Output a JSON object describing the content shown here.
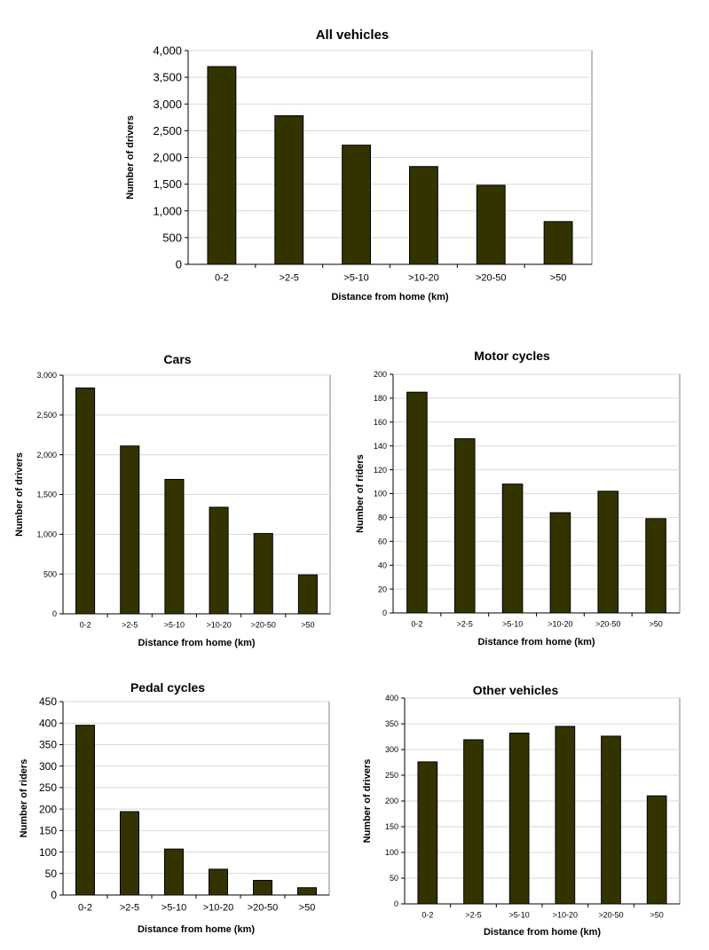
{
  "bar_color": "#333300",
  "chart_data": [
    {
      "type": "bar",
      "title": "All vehicles",
      "xlabel": "Distance from home (km)",
      "ylabel": "Number of drivers",
      "categories": [
        "0-2",
        ">2-5",
        ">5-10",
        ">10-20",
        ">20-50",
        ">50"
      ],
      "values": [
        3700,
        2780,
        2230,
        1830,
        1480,
        800
      ],
      "ylim": [
        0,
        4000
      ],
      "yticks": [
        0,
        500,
        1000,
        1500,
        2000,
        2500,
        3000,
        3500,
        4000
      ],
      "ytick_labels": [
        "0",
        "500",
        "1,000",
        "1,500",
        "2,000",
        "2,500",
        "3,000",
        "3,500",
        "4,000"
      ],
      "grid": true
    },
    {
      "type": "bar",
      "title": "Cars",
      "xlabel": "Distance from home (km)",
      "ylabel": "Number of drivers",
      "categories": [
        "0-2",
        ">2-5",
        ">5-10",
        ">10-20",
        ">20-50",
        ">50"
      ],
      "values": [
        2840,
        2110,
        1690,
        1340,
        1010,
        490
      ],
      "ylim": [
        0,
        3000
      ],
      "yticks": [
        0,
        500,
        1000,
        1500,
        2000,
        2500,
        3000
      ],
      "ytick_labels": [
        "0",
        "500",
        "1,000",
        "1,500",
        "2,000",
        "2,500",
        "3,000"
      ],
      "grid": true
    },
    {
      "type": "bar",
      "title": "Motor cycles",
      "xlabel": "Distance from home (km)",
      "ylabel": "Number of riders",
      "categories": [
        "0-2",
        ">2-5",
        ">5-10",
        ">10-20",
        ">20-50",
        ">50"
      ],
      "values": [
        185,
        146,
        108,
        84,
        102,
        79
      ],
      "ylim": [
        0,
        200
      ],
      "yticks": [
        0,
        20,
        40,
        60,
        80,
        100,
        120,
        140,
        160,
        180,
        200
      ],
      "ytick_labels": [
        "0",
        "20",
        "40",
        "60",
        "80",
        "100",
        "120",
        "140",
        "160",
        "180",
        "200"
      ],
      "grid": true
    },
    {
      "type": "bar",
      "title": "Pedal cycles",
      "xlabel": "Distance from home (km)",
      "ylabel": "Number of riders",
      "categories": [
        "0-2",
        ">2-5",
        ">5-10",
        ">10-20",
        ">20-50",
        ">50"
      ],
      "values": [
        395,
        194,
        107,
        60,
        34,
        17
      ],
      "ylim": [
        0,
        450
      ],
      "yticks": [
        0,
        50,
        100,
        150,
        200,
        250,
        300,
        350,
        400,
        450
      ],
      "ytick_labels": [
        "0",
        "50",
        "100",
        "150",
        "200",
        "250",
        "300",
        "350",
        "400",
        "450"
      ],
      "grid": true
    },
    {
      "type": "bar",
      "title": "Other vehicles",
      "xlabel": "Distance from home (km)",
      "ylabel": "Number of drivers",
      "categories": [
        "0-2",
        ">2-5",
        ">5-10",
        ">10-20",
        ">20-50",
        ">50"
      ],
      "values": [
        276,
        319,
        332,
        345,
        326,
        210
      ],
      "ylim": [
        0,
        400
      ],
      "yticks": [
        0,
        50,
        100,
        150,
        200,
        250,
        300,
        350,
        400
      ],
      "ytick_labels": [
        "0",
        "50",
        "100",
        "150",
        "200",
        "250",
        "300",
        "350",
        "400"
      ],
      "grid": true
    }
  ]
}
